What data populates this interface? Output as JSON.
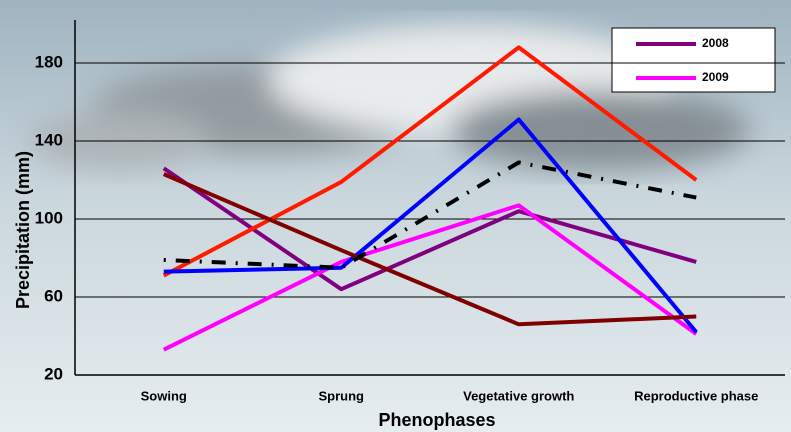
{
  "chart_data": {
    "type": "line",
    "y_label": "Precipitation (mm)",
    "x_label": "Phenophases",
    "categories": [
      "Sowing",
      "Sprung",
      "Vegetative growth",
      "Reproductive phase"
    ],
    "ylim": [
      20,
      200
    ],
    "yticks": [
      20,
      60,
      100,
      140,
      180
    ],
    "grid": true,
    "legend": "top-right",
    "series": [
      {
        "name": "2008",
        "color": "#800080",
        "values": [
          126,
          64,
          104,
          78
        ]
      },
      {
        "name": "2009",
        "color": "#ff00ff",
        "values": [
          33,
          78,
          107,
          41
        ]
      },
      {
        "color": "#ff1a00",
        "values": [
          71,
          119,
          188,
          120
        ]
      },
      {
        "color": "#0000ff",
        "values": [
          73,
          75,
          151,
          42
        ]
      },
      {
        "color": "#800000",
        "values": [
          123,
          84,
          46,
          50
        ]
      },
      {
        "color": "#000000",
        "dash": "2 10 14 10",
        "values": [
          79,
          75,
          129,
          111
        ]
      }
    ]
  }
}
